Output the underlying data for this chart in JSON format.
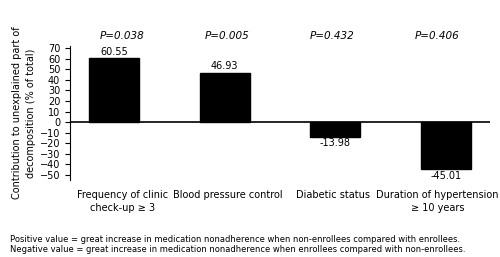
{
  "categories": [
    "Frequency of clinic\ncheck-up ≥ 3",
    "Blood pressure control",
    "Diabetic status",
    "Duration of hypertension\n≥ 10 years"
  ],
  "values": [
    60.55,
    46.93,
    -13.98,
    -45.01
  ],
  "p_values": [
    "P=0.038",
    "P=0.005",
    "P=0.432",
    "P=0.406"
  ],
  "bar_color": "#000000",
  "ylabel": "Contribution to unexplained part of\ndecomposition (% of total)",
  "ylim": [
    -55,
    72
  ],
  "yticks": [
    -50,
    -40,
    -30,
    -20,
    -10,
    0,
    10,
    20,
    30,
    40,
    50,
    60,
    70
  ],
  "footnote_line1": "Positive value = great increase in medication nonadherence when non-enrollees compared with enrollees.",
  "footnote_line2": "Negative value = great increase in medication nonadherence when enrollees compared with non-enrollees.",
  "bar_width": 0.45,
  "value_label_fontsize": 7,
  "axis_label_fontsize": 7,
  "tick_label_fontsize": 7,
  "p_value_fontsize": 7.5,
  "footnote_fontsize": 6.0
}
